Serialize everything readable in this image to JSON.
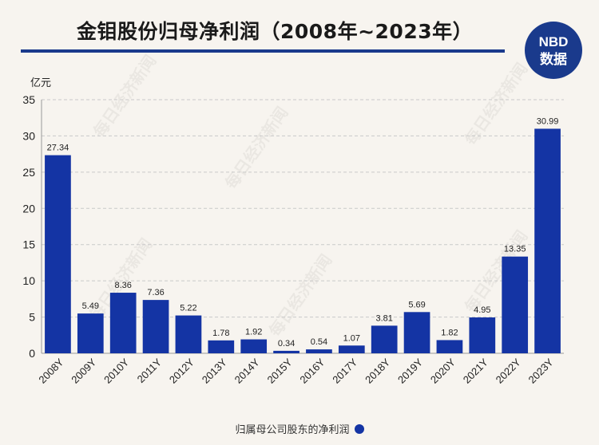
{
  "header": {
    "title": "金钼股份归母净利润（2008年~2023年）",
    "logo_top": "NBD",
    "logo_bottom": "数据"
  },
  "watermark_text": "每日经济新闻",
  "colors": {
    "bar": "#1434a4",
    "rule": "#1a3a8c",
    "logo_bg": "#1a3a8c",
    "logo_accent": "#e53935"
  },
  "chart_data": {
    "type": "bar",
    "ylabel": "亿元",
    "ylim": [
      0,
      35
    ],
    "yticks": [
      0,
      5,
      10,
      15,
      20,
      25,
      30,
      35
    ],
    "grid": true,
    "categories": [
      "2008Y",
      "2009Y",
      "2010Y",
      "2011Y",
      "2012Y",
      "2013Y",
      "2014Y",
      "2015Y",
      "2016Y",
      "2017Y",
      "2018Y",
      "2019Y",
      "2020Y",
      "2021Y",
      "2022Y",
      "2023Y"
    ],
    "series": [
      {
        "name": "归属母公司股东的净利润",
        "values": [
          27.34,
          5.49,
          8.36,
          7.36,
          5.22,
          1.78,
          1.92,
          0.34,
          0.54,
          1.07,
          3.81,
          5.69,
          1.82,
          4.95,
          13.35,
          30.99
        ]
      }
    ],
    "legend_position": "bottom"
  }
}
